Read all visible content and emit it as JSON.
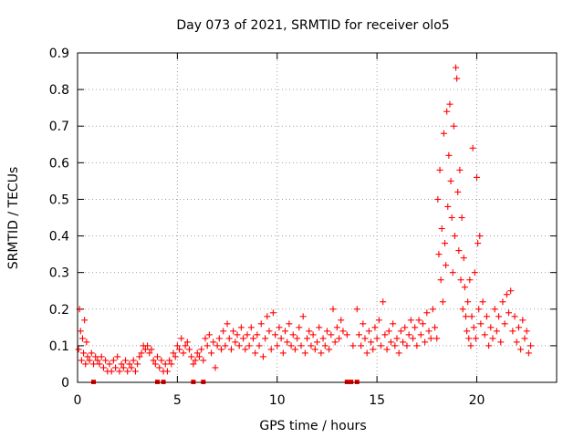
{
  "chart_data": {
    "type": "scatter",
    "title": "Day 073 of 2021, SRMTID for receiver olo5",
    "xlabel": "GPS time / hours",
    "ylabel": "SRMTID / TECUs",
    "xlim": [
      0,
      24
    ],
    "ylim": [
      0,
      0.9
    ],
    "grid": true,
    "xticks": [
      0,
      5,
      10,
      15,
      20
    ],
    "xtick_labels": [
      "0",
      "5",
      "10",
      "15",
      "20"
    ],
    "yticks": [
      0,
      0.1,
      0.2,
      0.3,
      0.4,
      0.5,
      0.6,
      0.7,
      0.8,
      0.9
    ],
    "ytick_labels": [
      "0",
      "0.1",
      "0.2",
      "0.3",
      "0.4",
      "0.5",
      "0.6",
      "0.7",
      "0.8",
      "0.9"
    ],
    "series": [
      {
        "name": "SRMTID",
        "color": "#ff0000",
        "marker": "plus",
        "points": [
          [
            0.05,
            0.09
          ],
          [
            0.1,
            0.2
          ],
          [
            0.15,
            0.14
          ],
          [
            0.2,
            0.06
          ],
          [
            0.25,
            0.12
          ],
          [
            0.3,
            0.08
          ],
          [
            0.35,
            0.17
          ],
          [
            0.4,
            0.05
          ],
          [
            0.45,
            0.11
          ],
          [
            0.5,
            0.07
          ],
          [
            0.6,
            0.06
          ],
          [
            0.7,
            0.08
          ],
          [
            0.8,
            0.05
          ],
          [
            0.9,
            0.07
          ],
          [
            1.0,
            0.06
          ],
          [
            1.1,
            0.05
          ],
          [
            1.2,
            0.07
          ],
          [
            1.3,
            0.04
          ],
          [
            1.4,
            0.06
          ],
          [
            1.5,
            0.03
          ],
          [
            1.6,
            0.05
          ],
          [
            1.7,
            0.03
          ],
          [
            1.8,
            0.06
          ],
          [
            1.9,
            0.04
          ],
          [
            2.0,
            0.07
          ],
          [
            2.1,
            0.03
          ],
          [
            2.2,
            0.05
          ],
          [
            2.3,
            0.04
          ],
          [
            2.4,
            0.06
          ],
          [
            2.5,
            0.03
          ],
          [
            2.6,
            0.05
          ],
          [
            2.7,
            0.04
          ],
          [
            2.8,
            0.06
          ],
          [
            2.9,
            0.03
          ],
          [
            3.0,
            0.05
          ],
          [
            3.1,
            0.07
          ],
          [
            3.2,
            0.08
          ],
          [
            3.3,
            0.1
          ],
          [
            3.4,
            0.09
          ],
          [
            3.5,
            0.1
          ],
          [
            3.6,
            0.08
          ],
          [
            3.7,
            0.09
          ],
          [
            3.8,
            0.06
          ],
          [
            3.9,
            0.05
          ],
          [
            4.0,
            0.07
          ],
          [
            4.1,
            0.04
          ],
          [
            4.2,
            0.06
          ],
          [
            4.3,
            0.03
          ],
          [
            4.4,
            0.05
          ],
          [
            4.5,
            0.03
          ],
          [
            4.6,
            0.06
          ],
          [
            4.7,
            0.05
          ],
          [
            4.8,
            0.08
          ],
          [
            4.9,
            0.07
          ],
          [
            5.0,
            0.1
          ],
          [
            5.1,
            0.09
          ],
          [
            5.2,
            0.12
          ],
          [
            5.3,
            0.08
          ],
          [
            5.4,
            0.1
          ],
          [
            5.5,
            0.11
          ],
          [
            5.6,
            0.09
          ],
          [
            5.7,
            0.07
          ],
          [
            5.8,
            0.05
          ],
          [
            5.9,
            0.06
          ],
          [
            6.0,
            0.08
          ],
          [
            6.1,
            0.07
          ],
          [
            6.2,
            0.09
          ],
          [
            6.3,
            0.06
          ],
          [
            6.4,
            0.12
          ],
          [
            6.5,
            0.1
          ],
          [
            6.6,
            0.13
          ],
          [
            6.7,
            0.08
          ],
          [
            6.8,
            0.11
          ],
          [
            6.9,
            0.04
          ],
          [
            7.0,
            0.1
          ],
          [
            7.1,
            0.12
          ],
          [
            7.2,
            0.09
          ],
          [
            7.3,
            0.14
          ],
          [
            7.4,
            0.1
          ],
          [
            7.5,
            0.16
          ],
          [
            7.6,
            0.12
          ],
          [
            7.7,
            0.09
          ],
          [
            7.8,
            0.14
          ],
          [
            7.9,
            0.11
          ],
          [
            8.0,
            0.13
          ],
          [
            8.1,
            0.1
          ],
          [
            8.2,
            0.15
          ],
          [
            8.3,
            0.12
          ],
          [
            8.4,
            0.09
          ],
          [
            8.5,
            0.13
          ],
          [
            8.6,
            0.1
          ],
          [
            8.7,
            0.15
          ],
          [
            8.8,
            0.12
          ],
          [
            8.9,
            0.08
          ],
          [
            9.0,
            0.13
          ],
          [
            9.1,
            0.1
          ],
          [
            9.2,
            0.16
          ],
          [
            9.3,
            0.07
          ],
          [
            9.4,
            0.12
          ],
          [
            9.5,
            0.18
          ],
          [
            9.6,
            0.14
          ],
          [
            9.7,
            0.09
          ],
          [
            9.8,
            0.19
          ],
          [
            9.9,
            0.13
          ],
          [
            10.0,
            0.1
          ],
          [
            10.1,
            0.15
          ],
          [
            10.2,
            0.12
          ],
          [
            10.3,
            0.08
          ],
          [
            10.4,
            0.14
          ],
          [
            10.5,
            0.11
          ],
          [
            10.6,
            0.16
          ],
          [
            10.7,
            0.1
          ],
          [
            10.8,
            0.13
          ],
          [
            10.9,
            0.09
          ],
          [
            11.0,
            0.12
          ],
          [
            11.1,
            0.15
          ],
          [
            11.2,
            0.1
          ],
          [
            11.3,
            0.18
          ],
          [
            11.4,
            0.08
          ],
          [
            11.5,
            0.12
          ],
          [
            11.6,
            0.14
          ],
          [
            11.7,
            0.1
          ],
          [
            11.8,
            0.13
          ],
          [
            11.9,
            0.09
          ],
          [
            12.0,
            0.11
          ],
          [
            12.1,
            0.15
          ],
          [
            12.2,
            0.08
          ],
          [
            12.3,
            0.12
          ],
          [
            12.4,
            0.1
          ],
          [
            12.5,
            0.14
          ],
          [
            12.6,
            0.09
          ],
          [
            12.7,
            0.13
          ],
          [
            12.8,
            0.2
          ],
          [
            12.9,
            0.11
          ],
          [
            13.0,
            0.15
          ],
          [
            13.1,
            0.12
          ],
          [
            13.2,
            0.17
          ],
          [
            13.3,
            0.14
          ],
          [
            13.5,
            0.13
          ],
          [
            13.8,
            0.1
          ],
          [
            14.0,
            0.2
          ],
          [
            14.1,
            0.13
          ],
          [
            14.2,
            0.1
          ],
          [
            14.3,
            0.16
          ],
          [
            14.4,
            0.12
          ],
          [
            14.5,
            0.08
          ],
          [
            14.6,
            0.14
          ],
          [
            14.7,
            0.11
          ],
          [
            14.8,
            0.09
          ],
          [
            14.9,
            0.15
          ],
          [
            15.0,
            0.12
          ],
          [
            15.1,
            0.17
          ],
          [
            15.2,
            0.1
          ],
          [
            15.3,
            0.22
          ],
          [
            15.4,
            0.13
          ],
          [
            15.5,
            0.09
          ],
          [
            15.6,
            0.14
          ],
          [
            15.7,
            0.11
          ],
          [
            15.8,
            0.16
          ],
          [
            15.9,
            0.1
          ],
          [
            16.0,
            0.12
          ],
          [
            16.1,
            0.08
          ],
          [
            16.2,
            0.14
          ],
          [
            16.3,
            0.11
          ],
          [
            16.4,
            0.15
          ],
          [
            16.5,
            0.1
          ],
          [
            16.6,
            0.13
          ],
          [
            16.7,
            0.17
          ],
          [
            16.8,
            0.12
          ],
          [
            16.9,
            0.15
          ],
          [
            17.0,
            0.1
          ],
          [
            17.1,
            0.17
          ],
          [
            17.2,
            0.13
          ],
          [
            17.3,
            0.16
          ],
          [
            17.4,
            0.11
          ],
          [
            17.5,
            0.19
          ],
          [
            17.6,
            0.14
          ],
          [
            17.7,
            0.12
          ],
          [
            17.8,
            0.2
          ],
          [
            17.9,
            0.15
          ],
          [
            18.0,
            0.12
          ],
          [
            18.05,
            0.5
          ],
          [
            18.1,
            0.35
          ],
          [
            18.15,
            0.58
          ],
          [
            18.2,
            0.28
          ],
          [
            18.25,
            0.42
          ],
          [
            18.3,
            0.22
          ],
          [
            18.35,
            0.68
          ],
          [
            18.4,
            0.38
          ],
          [
            18.45,
            0.32
          ],
          [
            18.5,
            0.74
          ],
          [
            18.55,
            0.48
          ],
          [
            18.6,
            0.62
          ],
          [
            18.65,
            0.76
          ],
          [
            18.7,
            0.55
          ],
          [
            18.75,
            0.45
          ],
          [
            18.8,
            0.3
          ],
          [
            18.85,
            0.7
          ],
          [
            18.9,
            0.4
          ],
          [
            18.95,
            0.86
          ],
          [
            19.0,
            0.83
          ],
          [
            19.05,
            0.52
          ],
          [
            19.1,
            0.36
          ],
          [
            19.15,
            0.58
          ],
          [
            19.2,
            0.28
          ],
          [
            19.25,
            0.45
          ],
          [
            19.3,
            0.2
          ],
          [
            19.35,
            0.34
          ],
          [
            19.4,
            0.26
          ],
          [
            19.45,
            0.18
          ],
          [
            19.5,
            0.14
          ],
          [
            19.55,
            0.22
          ],
          [
            19.6,
            0.12
          ],
          [
            19.65,
            0.28
          ],
          [
            19.7,
            0.1
          ],
          [
            19.75,
            0.18
          ],
          [
            19.8,
            0.64
          ],
          [
            19.85,
            0.15
          ],
          [
            19.9,
            0.3
          ],
          [
            19.95,
            0.12
          ],
          [
            20.0,
            0.56
          ],
          [
            20.05,
            0.38
          ],
          [
            20.1,
            0.2
          ],
          [
            20.15,
            0.4
          ],
          [
            20.2,
            0.16
          ],
          [
            20.3,
            0.22
          ],
          [
            20.4,
            0.13
          ],
          [
            20.5,
            0.18
          ],
          [
            20.6,
            0.1
          ],
          [
            20.7,
            0.15
          ],
          [
            20.8,
            0.12
          ],
          [
            20.9,
            0.2
          ],
          [
            21.0,
            0.14
          ],
          [
            21.1,
            0.18
          ],
          [
            21.2,
            0.11
          ],
          [
            21.3,
            0.22
          ],
          [
            21.4,
            0.16
          ],
          [
            21.5,
            0.24
          ],
          [
            21.6,
            0.19
          ],
          [
            21.7,
            0.25
          ],
          [
            21.8,
            0.14
          ],
          [
            21.9,
            0.18
          ],
          [
            22.0,
            0.11
          ],
          [
            22.1,
            0.15
          ],
          [
            22.2,
            0.09
          ],
          [
            22.3,
            0.17
          ],
          [
            22.4,
            0.12
          ],
          [
            22.5,
            0.14
          ],
          [
            22.6,
            0.08
          ],
          [
            22.7,
            0.1
          ]
        ]
      }
    ],
    "gap_markers_x": [
      0.8,
      4.0,
      4.3,
      5.8,
      6.3,
      13.5,
      13.7,
      14.0
    ]
  }
}
